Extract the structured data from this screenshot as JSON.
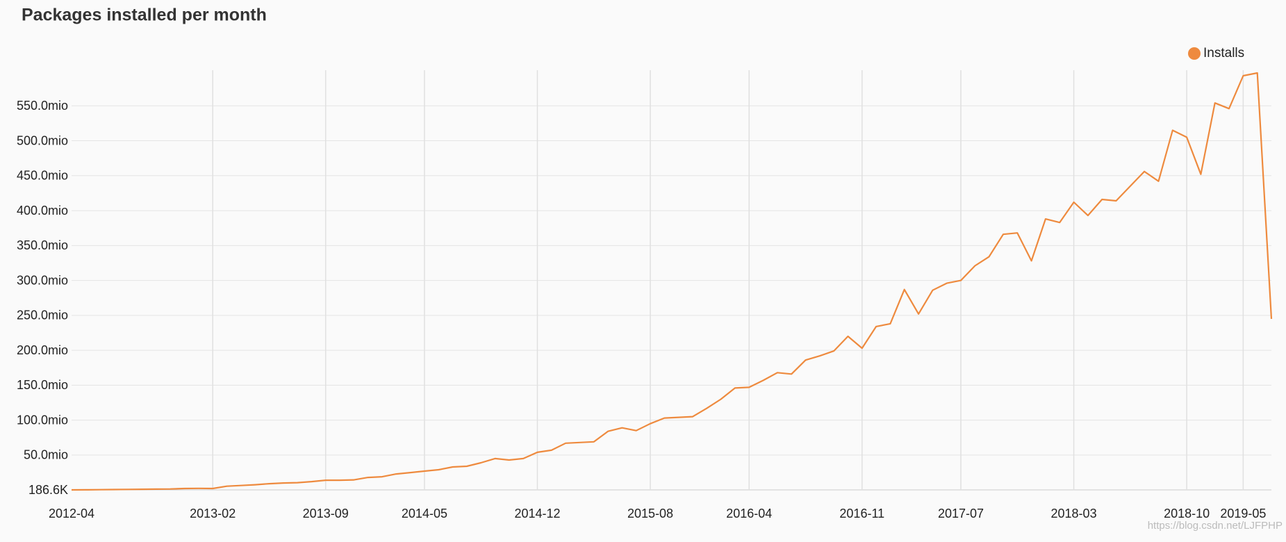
{
  "chart_data": {
    "type": "line",
    "title": "Packages installed per month",
    "categories": [
      "2012-04",
      null,
      null,
      null,
      null,
      null,
      null,
      null,
      null,
      null,
      "2013-02",
      null,
      null,
      null,
      null,
      null,
      null,
      null,
      "2013-09",
      null,
      null,
      null,
      null,
      null,
      null,
      "2014-05",
      null,
      null,
      null,
      null,
      null,
      null,
      null,
      "2014-12",
      null,
      null,
      null,
      null,
      null,
      null,
      null,
      "2015-08",
      null,
      null,
      null,
      null,
      null,
      null,
      "2016-04",
      null,
      null,
      null,
      null,
      null,
      null,
      null,
      "2016-11",
      null,
      null,
      null,
      null,
      null,
      null,
      "2017-07",
      null,
      null,
      null,
      null,
      null,
      null,
      null,
      "2018-03",
      null,
      null,
      null,
      null,
      null,
      null,
      null,
      "2018-10",
      null,
      null,
      null,
      "2019-05",
      null,
      null
    ],
    "series": [
      {
        "name": "Installs",
        "color": "#ee8a3e",
        "values": [
          0.19,
          0.3,
          0.5,
          0.7,
          0.9,
          1.1,
          1.3,
          1.5,
          2.2,
          2.4,
          2.2,
          5.5,
          6.5,
          7.5,
          9,
          10,
          10.5,
          12,
          14,
          14,
          14.5,
          18,
          19,
          23,
          25,
          27,
          29,
          33,
          34,
          39,
          45,
          43,
          45,
          54,
          57,
          67,
          68,
          69,
          84,
          89,
          85,
          95,
          103,
          104,
          105,
          117,
          130,
          146,
          147,
          157,
          168,
          166,
          186,
          192,
          199,
          220,
          203,
          234,
          238,
          287,
          252,
          286,
          296,
          300,
          321,
          334,
          366,
          368,
          328,
          388,
          383,
          412,
          393,
          416,
          414,
          435,
          456,
          442,
          515,
          505,
          452,
          554,
          546,
          593,
          597,
          245
        ]
      }
    ],
    "ylim": [
      0.1866,
      600
    ],
    "yticks": [
      {
        "value": 0.1866,
        "label": "186.6K"
      },
      {
        "value": 50,
        "label": "50.0mio"
      },
      {
        "value": 100,
        "label": "100.0mio"
      },
      {
        "value": 150,
        "label": "150.0mio"
      },
      {
        "value": 200,
        "label": "200.0mio"
      },
      {
        "value": 250,
        "label": "250.0mio"
      },
      {
        "value": 300,
        "label": "300.0mio"
      },
      {
        "value": 350,
        "label": "350.0mio"
      },
      {
        "value": 400,
        "label": "400.0mio"
      },
      {
        "value": 450,
        "label": "450.0mio"
      },
      {
        "value": 500,
        "label": "500.0mio"
      },
      {
        "value": 550,
        "label": "550.0mio"
      }
    ],
    "grid": true,
    "legend": "top-right",
    "watermark": "https://blog.csdn.net/LJFPHP"
  }
}
